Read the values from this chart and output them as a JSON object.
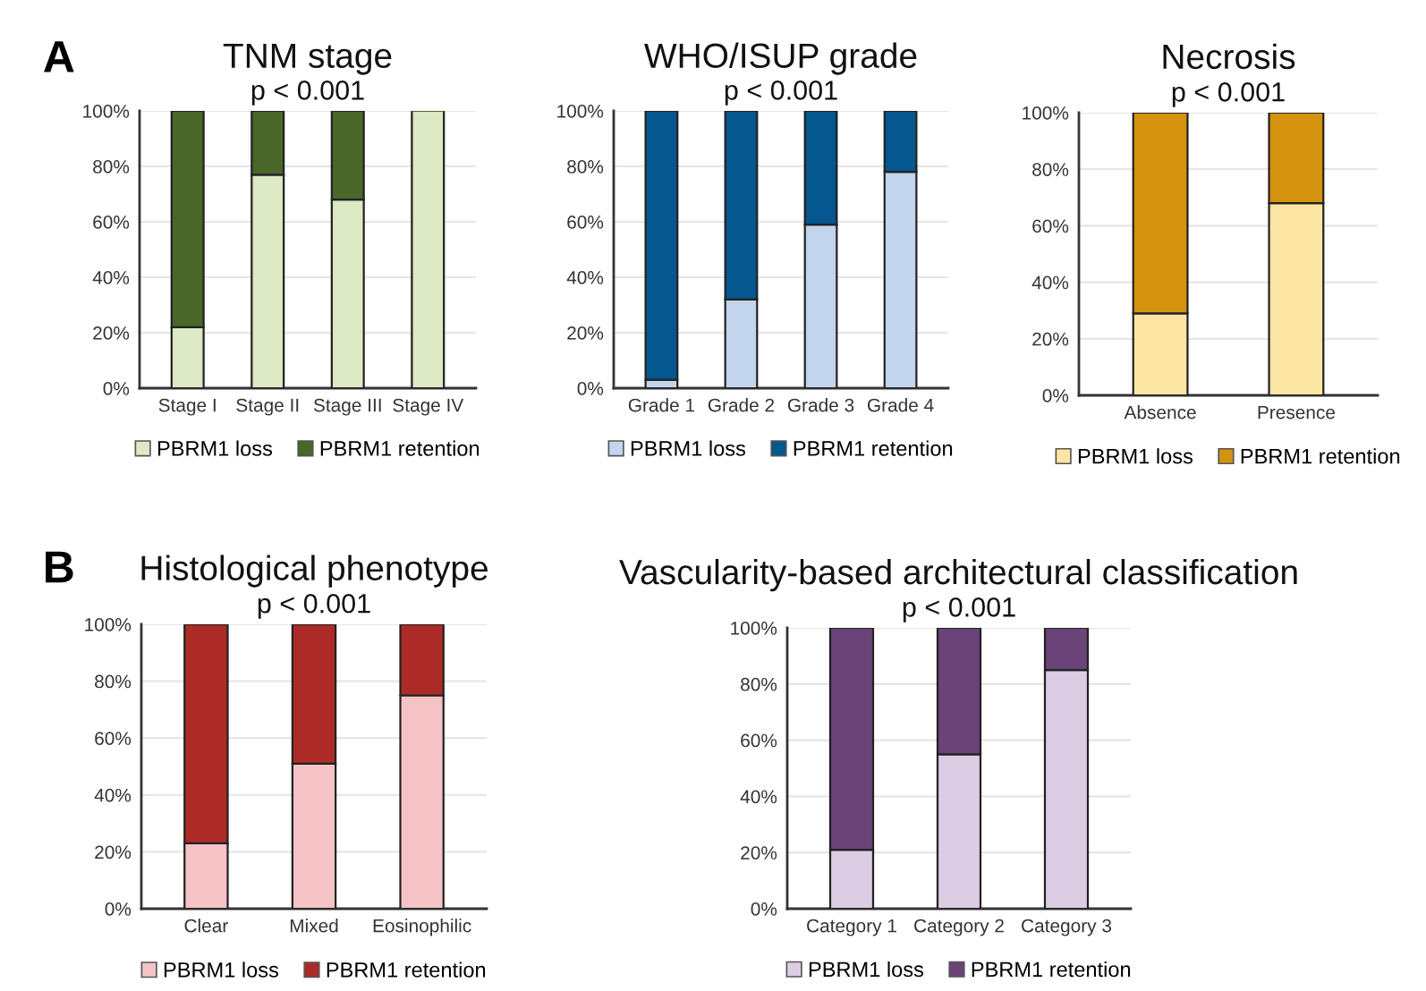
{
  "chart_data": [
    {
      "type": "bar",
      "stacked": true,
      "title": "TNM stage",
      "subtitle": "p < 0.001",
      "annotations": [
        "A"
      ],
      "categories": [
        "Stage I",
        "Stage II",
        "Stage III",
        "Stage IV"
      ],
      "ylim": [
        0,
        100
      ],
      "yticks": [
        {
          "value": 0,
          "label": "0%"
        },
        {
          "value": 20,
          "label": "20%"
        },
        {
          "value": 40,
          "label": "40%"
        },
        {
          "value": 60,
          "label": "60%"
        },
        {
          "value": 80,
          "label": "80%"
        },
        {
          "value": 100,
          "label": "100%"
        }
      ],
      "grid": "y",
      "legend": "bottom",
      "series": [
        {
          "name": "PBRM1 loss",
          "color": "#dde8c4",
          "values": [
            22,
            77,
            68,
            100
          ]
        },
        {
          "name": "PBRM1 retention",
          "color": "#4a6628",
          "values": [
            78,
            23,
            32,
            0
          ]
        }
      ]
    },
    {
      "type": "bar",
      "stacked": true,
      "title": "WHO/ISUP grade",
      "subtitle": "p < 0.001",
      "categories": [
        "Grade 1",
        "Grade 2",
        "Grade 3",
        "Grade 4"
      ],
      "ylim": [
        0,
        100
      ],
      "yticks": [
        {
          "value": 0,
          "label": "0%"
        },
        {
          "value": 20,
          "label": "20%"
        },
        {
          "value": 40,
          "label": "40%"
        },
        {
          "value": 60,
          "label": "60%"
        },
        {
          "value": 80,
          "label": "80%"
        },
        {
          "value": 100,
          "label": "100%"
        }
      ],
      "grid": "y",
      "legend": "bottom",
      "series": [
        {
          "name": "PBRM1 loss",
          "color": "#c2d5ec",
          "values": [
            3,
            32,
            59,
            78
          ]
        },
        {
          "name": "PBRM1 retention",
          "color": "#04578f",
          "values": [
            97,
            68,
            41,
            22
          ]
        }
      ]
    },
    {
      "type": "bar",
      "stacked": true,
      "title": "Necrosis",
      "subtitle": "p < 0.001",
      "categories": [
        "Absence",
        "Presence"
      ],
      "ylim": [
        0,
        100
      ],
      "yticks": [
        {
          "value": 0,
          "label": "0%"
        },
        {
          "value": 20,
          "label": "20%"
        },
        {
          "value": 40,
          "label": "40%"
        },
        {
          "value": 60,
          "label": "60%"
        },
        {
          "value": 80,
          "label": "80%"
        },
        {
          "value": 100,
          "label": "100%"
        }
      ],
      "grid": "y",
      "legend": "bottom",
      "series": [
        {
          "name": "PBRM1 loss",
          "color": "#fde6a3",
          "values": [
            29,
            68
          ]
        },
        {
          "name": "PBRM1 retention",
          "color": "#d4940f",
          "values": [
            71,
            32
          ]
        }
      ]
    },
    {
      "type": "bar",
      "stacked": true,
      "title": "Histological phenotype",
      "subtitle": "p < 0.001",
      "annotations": [
        "B"
      ],
      "categories": [
        "Clear",
        "Mixed",
        "Eosinophilic"
      ],
      "ylim": [
        0,
        100
      ],
      "yticks": [
        {
          "value": 0,
          "label": "0%"
        },
        {
          "value": 20,
          "label": "20%"
        },
        {
          "value": 40,
          "label": "40%"
        },
        {
          "value": 60,
          "label": "60%"
        },
        {
          "value": 80,
          "label": "80%"
        },
        {
          "value": 100,
          "label": "100%"
        }
      ],
      "grid": "y",
      "legend": "bottom",
      "series": [
        {
          "name": "PBRM1 loss",
          "color": "#f5c3c5",
          "values": [
            23,
            51,
            75
          ]
        },
        {
          "name": "PBRM1 retention",
          "color": "#ad2b27",
          "values": [
            77,
            49,
            25
          ]
        }
      ]
    },
    {
      "type": "bar",
      "stacked": true,
      "title": "Vascularity-based architectural classification",
      "subtitle": "p < 0.001",
      "categories": [
        "Category 1",
        "Category 2",
        "Category 3"
      ],
      "ylim": [
        0,
        100
      ],
      "yticks": [
        {
          "value": 0,
          "label": "0%"
        },
        {
          "value": 20,
          "label": "20%"
        },
        {
          "value": 40,
          "label": "40%"
        },
        {
          "value": 60,
          "label": "60%"
        },
        {
          "value": 80,
          "label": "80%"
        },
        {
          "value": 100,
          "label": "100%"
        }
      ],
      "grid": "y",
      "legend": "bottom",
      "series": [
        {
          "name": "PBRM1 loss",
          "color": "#dccde4",
          "values": [
            21,
            55,
            85
          ]
        },
        {
          "name": "PBRM1 retention",
          "color": "#6a4379",
          "values": [
            79,
            45,
            15
          ]
        }
      ]
    }
  ]
}
